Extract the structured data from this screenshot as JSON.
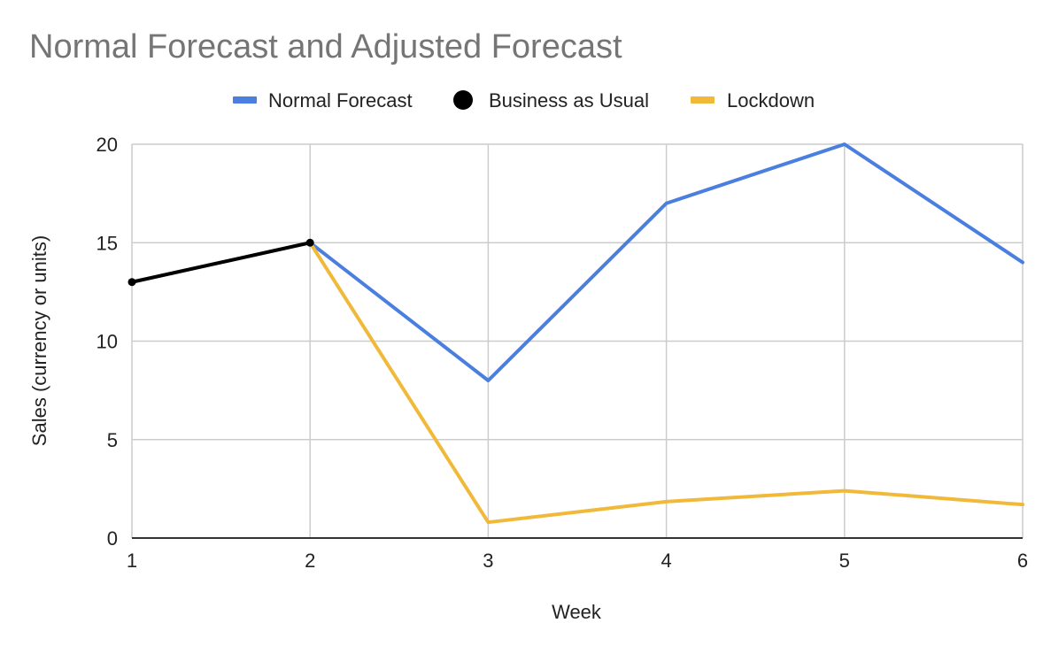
{
  "chart_data": {
    "type": "line",
    "title": "Normal Forecast and Adjusted Forecast",
    "xlabel": "Week",
    "ylabel": "Sales (currency or units)",
    "x": [
      1,
      2,
      3,
      4,
      5,
      6
    ],
    "xlim": [
      1,
      6
    ],
    "ylim": [
      0,
      20
    ],
    "yticks": [
      0,
      5,
      10,
      15,
      20
    ],
    "grid": true,
    "legend_position": "top",
    "series": [
      {
        "name": "Normal Forecast",
        "color": "#4a7fe0",
        "marker": "line",
        "x": [
          2,
          3,
          4,
          5,
          6
        ],
        "values": [
          15,
          8,
          17,
          20,
          14
        ]
      },
      {
        "name": "Business as Usual",
        "color": "#000000",
        "marker": "dot",
        "x": [
          1,
          2
        ],
        "values": [
          13,
          15
        ]
      },
      {
        "name": "Lockdown",
        "color": "#f0b93a",
        "marker": "line",
        "x": [
          2,
          3,
          4,
          5,
          6
        ],
        "values": [
          15,
          0.8,
          1.85,
          2.4,
          1.7
        ]
      }
    ]
  }
}
